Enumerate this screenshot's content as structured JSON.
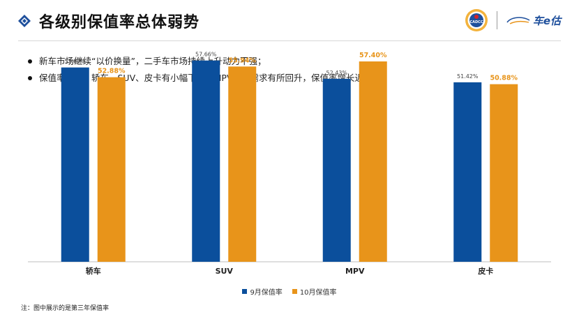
{
  "header": {
    "title": "各级别保值率总体弱势",
    "logo_left_text": "CADCC",
    "logo_right_text": "车e估"
  },
  "bullets": [
    "新车市场继续“以价换量”，二手车市场持续上升动力不强；",
    "保值率方面，轿车、SUV、皮卡有小幅下降。MPV市场需求有所回升，保值率增长近5%。"
  ],
  "footnote": "注：图中展示的是第三年保值率",
  "colors": {
    "sep": "#0b4f9c",
    "oct": "#e8941a",
    "title_diamond": "#1e4f9c"
  },
  "chart_data": {
    "type": "bar",
    "categories": [
      "轿车",
      "SUV",
      "MPV",
      "皮卡"
    ],
    "series": [
      {
        "name": "9月保值率",
        "values": [
          55.67,
          57.66,
          52.43,
          51.42
        ],
        "labels": [
          "55.67%",
          "57.66%",
          "52.43%",
          "51.42%"
        ]
      },
      {
        "name": "10月保值率",
        "values": [
          52.88,
          55.94,
          57.4,
          50.88
        ],
        "labels": [
          "52.88%",
          "55.94%",
          "57.40%",
          "50.88%"
        ]
      }
    ],
    "ylim": [
      0,
      60
    ],
    "grid": false,
    "legend": "bottom"
  }
}
